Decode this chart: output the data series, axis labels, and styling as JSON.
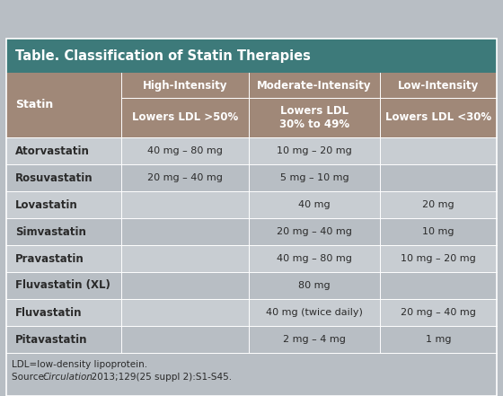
{
  "title": "Table. Classification of Statin Therapies",
  "title_bg": "#3d7a7a",
  "title_color": "#ffffff",
  "header_bg": "#a08878",
  "header_color": "#ffffff",
  "subheader_bg": "#a08878",
  "subheader_color": "#ffffff",
  "row_bg_odd": "#c8cdd2",
  "row_bg_even": "#b8bec4",
  "statin_col_bg_odd": "#c8cdd2",
  "statin_col_bg_even": "#b8bec4",
  "data_color": "#2a2a2a",
  "statin_color": "#2a2a2a",
  "footer_bg": "#b8bec4",
  "footer_color": "#2a2a2a",
  "col_headers": [
    "High-Intensity",
    "Moderate-Intensity",
    "Low-Intensity"
  ],
  "col_subheaders": [
    "Lowers LDL >50%",
    "Lowers LDL\n30% to 49%",
    "Lowers LDL <30%"
  ],
  "rows": [
    [
      "Atorvastatin",
      "40 mg – 80 mg",
      "10 mg – 20 mg",
      ""
    ],
    [
      "Rosuvastatin",
      "20 mg – 40 mg",
      "5 mg – 10 mg",
      ""
    ],
    [
      "Lovastatin",
      "",
      "40 mg",
      "20 mg"
    ],
    [
      "Simvastatin",
      "",
      "20 mg – 40 mg",
      "10 mg"
    ],
    [
      "Pravastatin",
      "",
      "40 mg – 80 mg",
      "10 mg – 20 mg"
    ],
    [
      "Fluvastatin (XL)",
      "",
      "80 mg",
      ""
    ],
    [
      "Fluvastatin",
      "",
      "40 mg (twice daily)",
      "20 mg – 40 mg"
    ],
    [
      "Pitavastatin",
      "",
      "2 mg – 4 mg",
      "1 mg"
    ]
  ],
  "footer_line1": "LDL=low-density lipoprotein.",
  "footer_line2_prefix": "Source: ",
  "footer_line2_italic": "Circulation",
  "footer_line2_suffix": ". 2013;129(25 suppl 2):S1-S45."
}
